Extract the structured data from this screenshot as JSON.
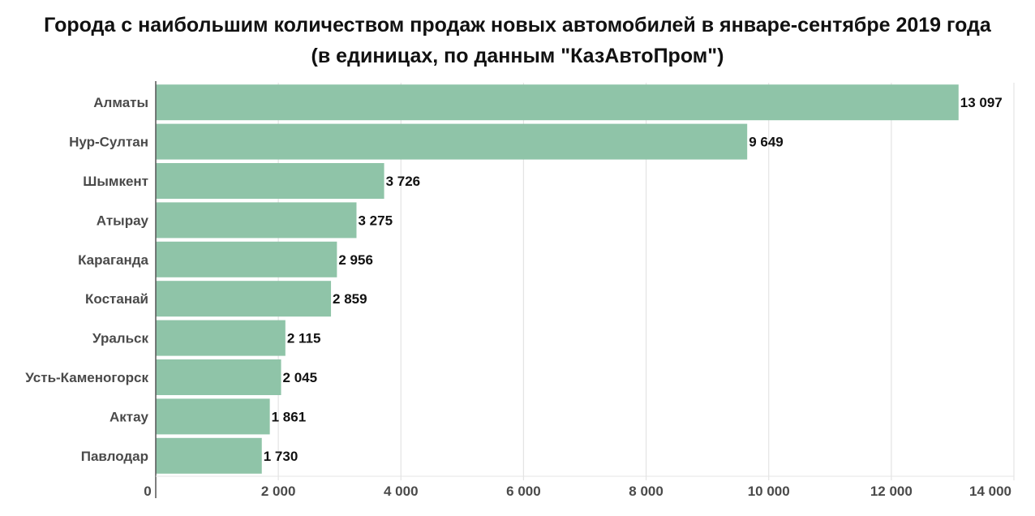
{
  "chart_data": {
    "type": "bar",
    "orientation": "horizontal",
    "title": "Города с наибольшим количеством продаж новых автомобилей в январе-сентябре 2019 года",
    "subtitle": "(в единицах, по данным \"КазАвтоПром\")",
    "xlabel": "",
    "ylabel": "",
    "categories": [
      "Алматы",
      "Нур-Султан",
      "Шымкент",
      "Атырау",
      "Караганда",
      "Костанай",
      "Уральск",
      "Усть-Каменогорск",
      "Актау",
      "Павлодар"
    ],
    "values": [
      13097,
      9649,
      3726,
      3275,
      2956,
      2859,
      2115,
      2045,
      1861,
      1730
    ],
    "value_labels": [
      "13 097",
      "9 649",
      "3 726",
      "3 275",
      "2 956",
      "2 859",
      "2 115",
      "2 045",
      "1 861",
      "1 730"
    ],
    "xlim": [
      0,
      14000
    ],
    "x_ticks": [
      0,
      2000,
      4000,
      6000,
      8000,
      10000,
      12000,
      14000
    ],
    "x_tick_labels": [
      "0",
      "2 000",
      "4 000",
      "6 000",
      "8 000",
      "10 000",
      "12 000",
      "14 000"
    ],
    "grid": "vertical",
    "legend": "none",
    "colors": {
      "bar": "#8fc4a8",
      "grid": "#e4e4e4",
      "axis": "#555555"
    }
  }
}
